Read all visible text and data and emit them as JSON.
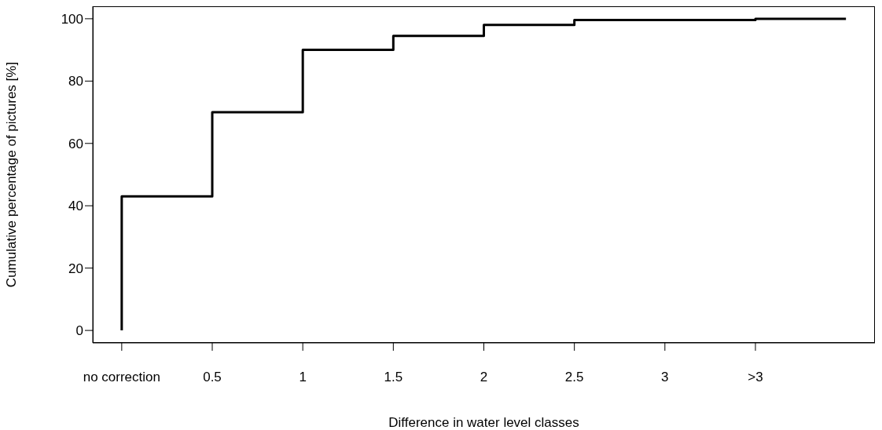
{
  "chart_data": {
    "type": "step",
    "xlabel": "Difference in water level classes",
    "ylabel": "Cumulative percentage of pictures [%]",
    "categories": [
      "no correction",
      "0.5",
      "1",
      "1.5",
      "2",
      "2.5",
      "3",
      ">3",
      null
    ],
    "series": [
      {
        "color": "#000000",
        "values": [
          0,
          43,
          70,
          90,
          94.5,
          98,
          99.6,
          99.6,
          100
        ]
      }
    ],
    "ylim": [
      -4,
      104
    ],
    "yticks": [
      0,
      20,
      40,
      60,
      80,
      100
    ],
    "grid": false,
    "marker": "none",
    "line_style": "solid"
  }
}
